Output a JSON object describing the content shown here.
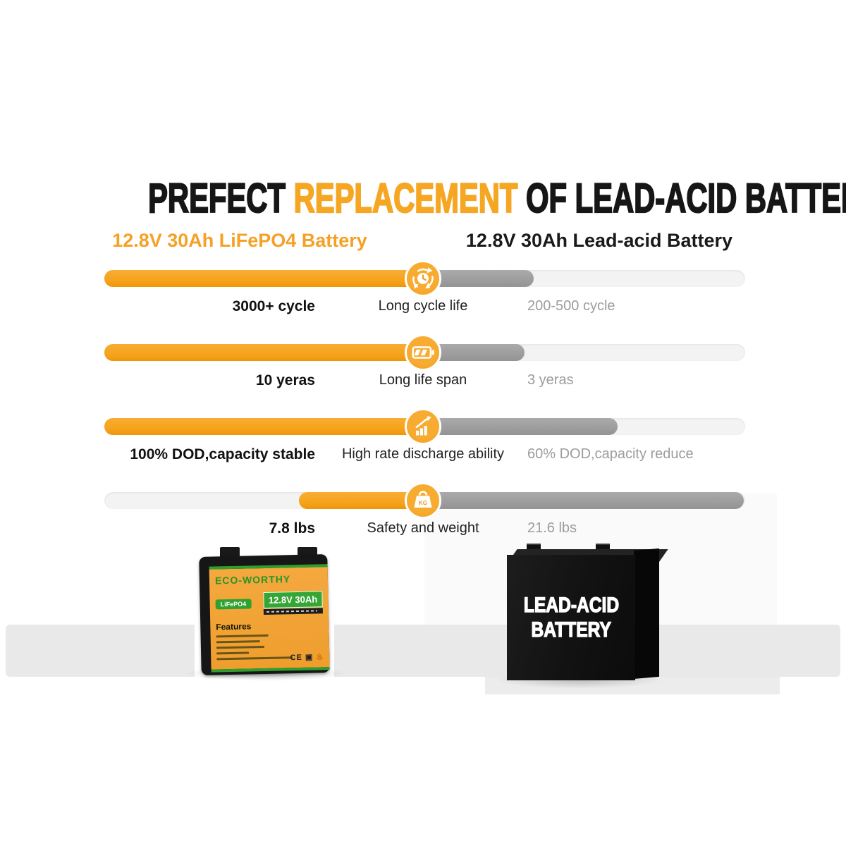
{
  "title": {
    "part1": "PREFECT",
    "highlight": " REPLACEMENT ",
    "part3": "OF LEAD-ACID BATTERIES",
    "accent_color": "#f5a623"
  },
  "columns": {
    "left": {
      "label": "12.8V 30Ah LiFePO4 Battery",
      "color": "#f5a126"
    },
    "right": {
      "label": "12.8V 30Ah Lead-acid Battery",
      "color": "#1a1a1a"
    }
  },
  "comparison": {
    "rows": [
      {
        "metric": "Long cycle life",
        "icon": "cycle-clock-icon",
        "left_value": "3000+ cycle",
        "right_value": "200-500 cycle",
        "bar": {
          "track": [
            148,
            1057
          ],
          "orange": [
            148,
            612
          ],
          "gray": [
            588,
            757
          ]
        }
      },
      {
        "metric": "Long life span",
        "icon": "battery-icon",
        "left_value": "10 yeras",
        "right_value": "3 yeras",
        "bar": {
          "track": [
            148,
            1057
          ],
          "orange": [
            148,
            612
          ],
          "gray": [
            588,
            744
          ]
        }
      },
      {
        "metric": "High rate discharge ability",
        "icon": "discharge-chart-icon",
        "left_value": "100% DOD,capacity stable",
        "right_value": "60% DOD,capacity reduce",
        "bar": {
          "track": [
            148,
            1057
          ],
          "orange": [
            148,
            612
          ],
          "gray": [
            588,
            876
          ]
        }
      },
      {
        "metric": "Safety and weight",
        "icon": "weight-kg-icon",
        "left_value": "7.8 lbs",
        "right_value": "21.6 lbs",
        "bar": {
          "track": [
            148,
            1057
          ],
          "orange": [
            424,
            612
          ],
          "gray": [
            588,
            1055
          ]
        }
      }
    ]
  },
  "battery_left": {
    "brand": "ECO-WORTHY",
    "chemistry": "LiFePO4",
    "rating": "12.8V 30Ah",
    "features_title": "Features",
    "cert_text": "CE"
  },
  "battery_right": {
    "line1": "LEAD-ACID",
    "line2": "BATTERY"
  },
  "colors": {
    "orange_bar": "#f5a21b",
    "gray_bar": "#9c9c9c",
    "track": "#f3f3f3",
    "green_accent": "#2fa12f"
  },
  "chart_data": {
    "type": "bar",
    "orientation": "horizontal",
    "title": "PREFECT REPLACEMENT OF LEAD-ACID BATTERIES",
    "categories": [
      "Long cycle life",
      "Long life span",
      "High rate discharge ability",
      "Safety and weight"
    ],
    "series": [
      {
        "name": "12.8V 30Ah LiFePO4 Battery",
        "labels": [
          "3000+ cycle",
          "10 yeras",
          "100% DOD,capacity stable",
          "7.8 lbs"
        ],
        "bar_fraction_of_track": [
          0.51,
          0.51,
          0.51,
          0.21
        ]
      },
      {
        "name": "12.8V 30Ah Lead-acid Battery",
        "labels": [
          "200-500 cycle",
          "3 yeras",
          "60% DOD,capacity reduce",
          "21.6 lbs"
        ],
        "bar_fraction_of_track": [
          0.17,
          0.16,
          0.32,
          0.51
        ]
      }
    ],
    "legend_position": "top",
    "grid": false
  }
}
